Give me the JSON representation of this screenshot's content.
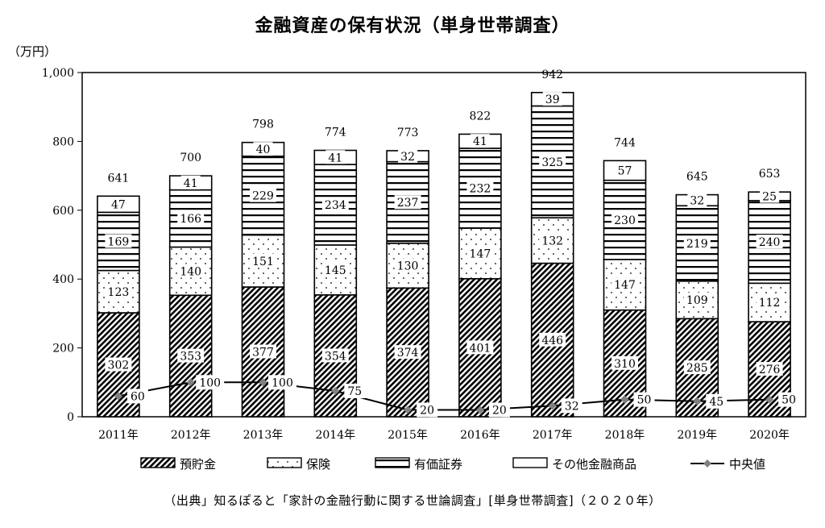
{
  "title": "金融資産の保有状況（単身世帯調査）",
  "unit": "（万円）",
  "source": "（出典」知るぽると「家計の金融行動に関する世論調査」[単身世帯調査]（２０２０年）",
  "chart_data": {
    "type": "bar",
    "stacked": true,
    "categories": [
      "2011年",
      "2012年",
      "2013年",
      "2014年",
      "2015年",
      "2016年",
      "2017年",
      "2018年",
      "2019年",
      "2020年"
    ],
    "ylim": [
      0,
      1000
    ],
    "yticks": [
      0,
      200,
      400,
      600,
      800,
      1000
    ],
    "ytick_labels": [
      "0",
      "200",
      "400",
      "600",
      "800",
      "1,000"
    ],
    "series": [
      {
        "name": "預貯金",
        "pattern": "diagonal",
        "values": [
          302,
          353,
          377,
          354,
          374,
          401,
          446,
          310,
          285,
          276
        ]
      },
      {
        "name": "保険",
        "pattern": "dots",
        "values": [
          123,
          140,
          151,
          145,
          130,
          147,
          132,
          147,
          109,
          112
        ]
      },
      {
        "name": "有価証券",
        "pattern": "horizontal",
        "values": [
          169,
          166,
          229,
          234,
          237,
          232,
          325,
          230,
          219,
          240
        ]
      },
      {
        "name": "その他金融商品",
        "pattern": "plain",
        "values": [
          47,
          41,
          40,
          41,
          32,
          41,
          39,
          57,
          32,
          25
        ]
      }
    ],
    "totals": [
      641,
      700,
      798,
      774,
      773,
      822,
      942,
      744,
      645,
      653
    ],
    "line": {
      "name": "中央値",
      "color": "#000000",
      "marker_color": "#808080",
      "values": [
        60,
        100,
        100,
        75,
        20,
        20,
        32,
        50,
        45,
        50
      ]
    },
    "grid": false,
    "legend": "bottom"
  }
}
